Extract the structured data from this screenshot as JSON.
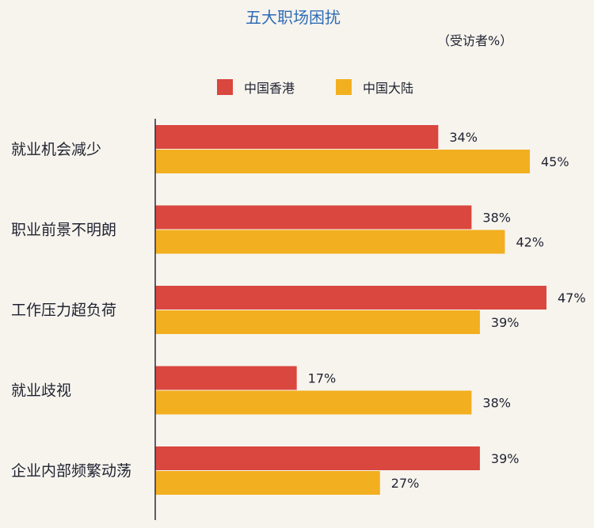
{
  "chart_data": {
    "type": "bar",
    "orientation": "horizontal",
    "title": "五大职场困扰",
    "subtitle": "（受访者%）",
    "categories": [
      "就业机会减少",
      "职业前景不明朗",
      "工作压力超负荷",
      "就业歧视",
      "企业内部频繁动荡"
    ],
    "series": [
      {
        "name": "中国香港",
        "color": "#d9473f",
        "values": [
          34,
          38,
          47,
          17,
          39
        ],
        "labels": [
          "34%",
          "38%",
          "47%",
          "17%",
          "39%"
        ]
      },
      {
        "name": "中国大陆",
        "color": "#f2af1f",
        "values": [
          45,
          42,
          39,
          38,
          27
        ],
        "labels": [
          "45%",
          "42%",
          "39%",
          "38%",
          "27%"
        ]
      }
    ],
    "xlim": [
      0,
      47
    ],
    "grid": false,
    "legend_position": "top"
  }
}
